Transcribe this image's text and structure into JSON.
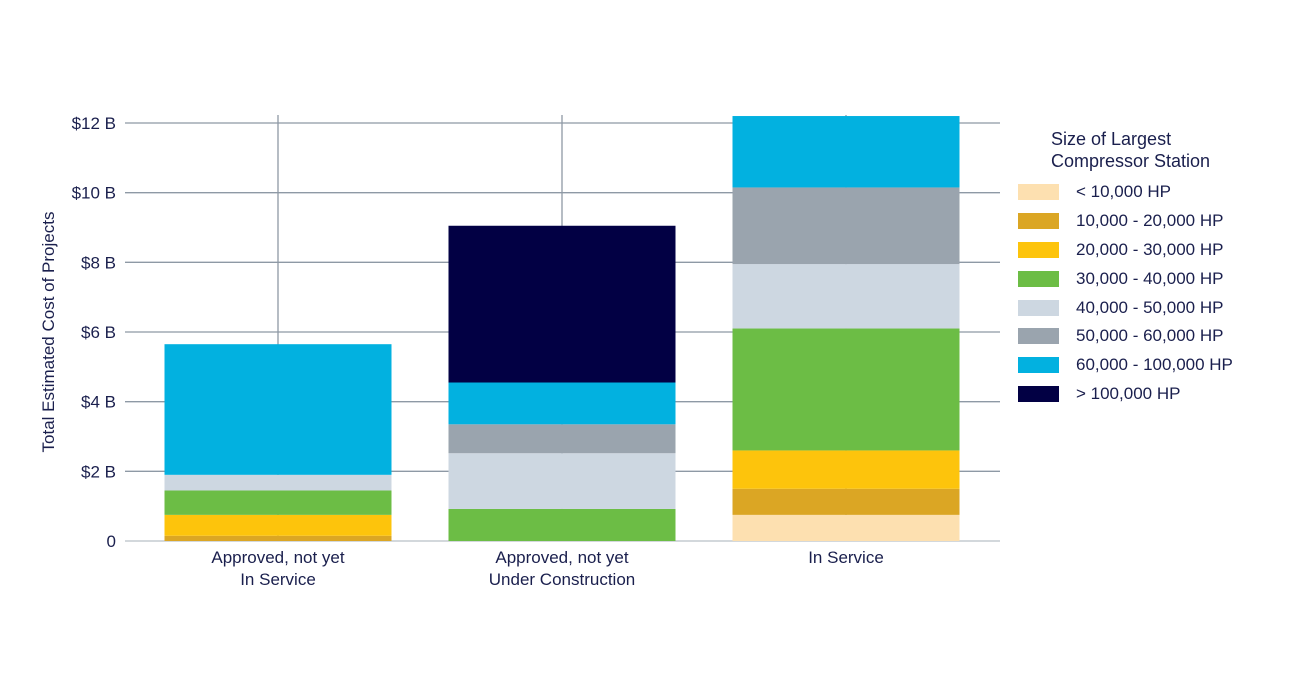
{
  "chart_data": {
    "type": "bar",
    "stacked": true,
    "ylabel": "Total Estimated Cost of Projects",
    "ylim": [
      0,
      12.5
    ],
    "yticks": [
      0,
      2,
      4,
      6,
      8,
      10,
      12
    ],
    "ytick_labels": [
      "0",
      "$2 B",
      "$4 B",
      "$6 B",
      "$8 B",
      "$10 B",
      "$12 B"
    ],
    "categories": [
      [
        "Approved, not yet",
        "In Service"
      ],
      [
        "Approved, not yet",
        "Under Construction"
      ],
      [
        "In Service"
      ]
    ],
    "legend": {
      "title": [
        "Size of Largest",
        "Compressor Station"
      ],
      "position": "right"
    },
    "series": [
      {
        "name": "< 10,000 HP",
        "color": "#fde0b0",
        "values": [
          0.0,
          0.0,
          0.75
        ]
      },
      {
        "name": "10,000 - 20,000 HP",
        "color": "#dba624",
        "values": [
          0.15,
          0.0,
          0.75
        ]
      },
      {
        "name": "20,000 - 30,000 HP",
        "color": "#fdc40c",
        "values": [
          0.6,
          0.0,
          1.1
        ]
      },
      {
        "name": "30,000 - 40,000 HP",
        "color": "#6cbd45",
        "values": [
          0.7,
          0.92,
          3.5
        ]
      },
      {
        "name": "40,000 - 50,000 HP",
        "color": "#cdd7e1",
        "values": [
          0.45,
          1.6,
          1.85
        ]
      },
      {
        "name": "50,000 - 60,000 HP",
        "color": "#9aa4ae",
        "values": [
          0.0,
          0.83,
          2.2
        ]
      },
      {
        "name": "60,000 - 100,000 HP",
        "color": "#02b1e0",
        "values": [
          3.75,
          1.2,
          2.05
        ]
      },
      {
        "name": "> 100,000 HP",
        "color": "#020044",
        "values": [
          0.0,
          4.5,
          0.0
        ]
      }
    ],
    "grid": true
  }
}
